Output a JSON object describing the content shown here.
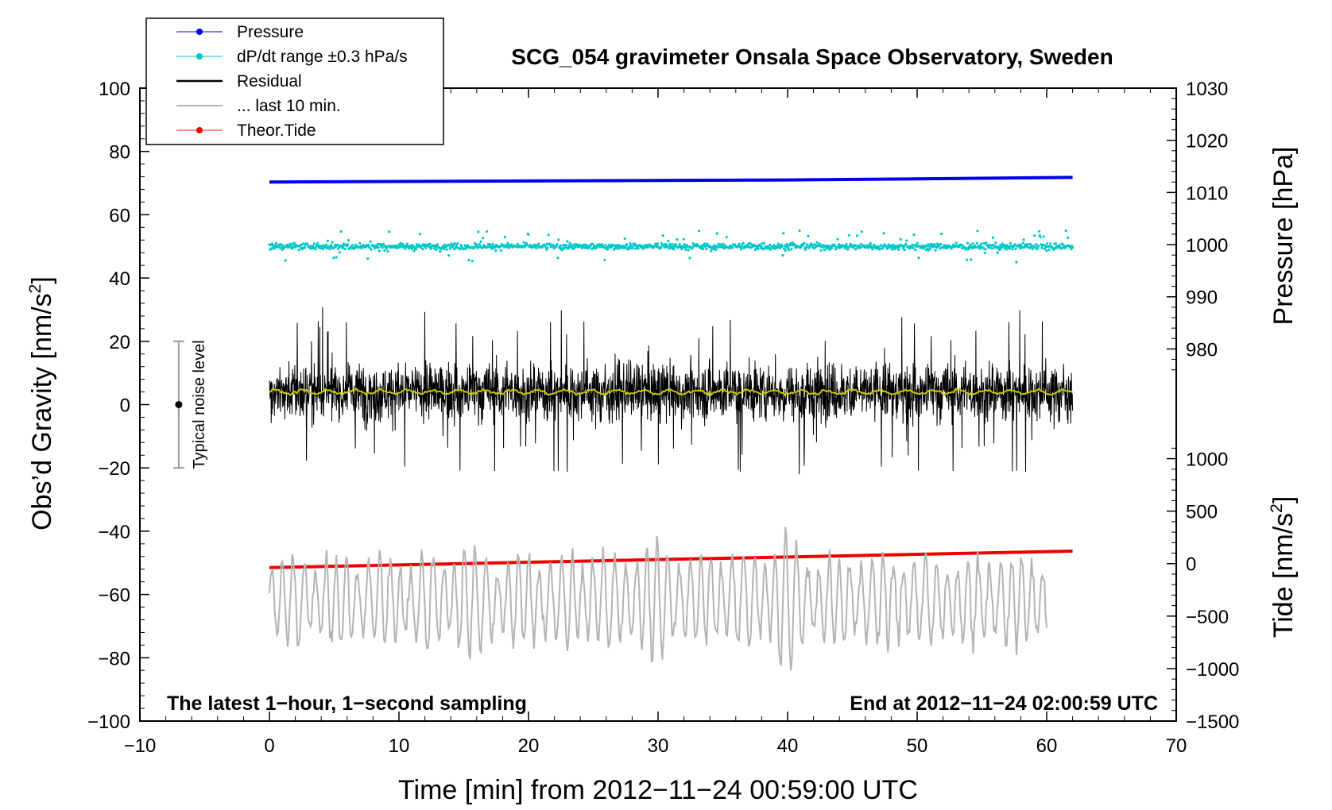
{
  "chart_data": {
    "type": "line",
    "title": "SCG_054 gravimeter Onsala Space Observatory, Sweden",
    "xlabel": "Time [min] from 2012−11−24 00:59:00 UTC",
    "ylabel_left_prefix": "Obs’d Gravity [nm/s",
    "ylabel_left_sup": "2",
    "ylabel_left_suffix": "]",
    "ylabel_right_top": "Pressure [hPa]",
    "ylabel_right_bottom_prefix": "Tide [nm/s",
    "ylabel_right_bottom_sup": "2",
    "ylabel_right_bottom_suffix": "]",
    "xlim": [
      -10,
      70
    ],
    "ylim_left": [
      -100,
      100
    ],
    "x_ticks": [
      -10,
      0,
      10,
      20,
      30,
      40,
      50,
      60,
      70
    ],
    "x_tick_labels": [
      "−10",
      "0",
      "10",
      "20",
      "30",
      "40",
      "50",
      "60",
      "70"
    ],
    "y_ticks_left": [
      -100,
      -80,
      -60,
      -40,
      -20,
      0,
      20,
      40,
      60,
      80,
      100
    ],
    "y_tick_labels_left": [
      "−100",
      "−80",
      "−60",
      "−40",
      "−20",
      "0",
      "20",
      "40",
      "60",
      "80",
      "100"
    ],
    "pressure_axis": {
      "ticks": [
        980,
        990,
        1000,
        1010,
        1020,
        1030
      ],
      "tick_labels": [
        "980",
        "990",
        "1000",
        "1010",
        "1020",
        "1030"
      ],
      "value_at_left_100": 1030,
      "hpa_per_left_unit": 0.6067
    },
    "tide_axis": {
      "ticks": [
        -1500,
        -1000,
        -500,
        0,
        500,
        1000
      ],
      "tick_labels": [
        "−1500",
        "−1000",
        "−500",
        "0",
        "500",
        "1000"
      ],
      "value_at_left_minus100": -1500,
      "nms2_per_left_unit": 30.15
    },
    "legend": [
      {
        "label": "Pressure",
        "color": "#0000ee",
        "marker": true,
        "line_color": "#7f7fff"
      },
      {
        "label": "dP/dt range ±0.3 hPa/s",
        "color": "#00c8c8",
        "marker": true,
        "line_color": "#7fe0e0"
      },
      {
        "label": "Residual",
        "color": "#000000",
        "marker": false,
        "line_color": "#000000"
      },
      {
        "label": "... last 10 min.",
        "color": "#b4b4b4",
        "marker": false,
        "line_color": "#b4b4b4"
      },
      {
        "label": "Theor.Tide",
        "color": "#ee0000",
        "marker": true,
        "line_color": "#ff8c8c"
      }
    ],
    "series": [
      {
        "name": "Pressure",
        "color": "#0000ee",
        "axis": "pressure",
        "x": [
          0,
          20,
          40,
          50,
          62
        ],
        "y": [
          1012.0,
          1012.2,
          1012.4,
          1012.6,
          1012.9
        ]
      },
      {
        "name": "dP/dt range ±0.3 hPa/s",
        "color": "#00c8c8",
        "axis": "left",
        "x_range": [
          0,
          62
        ],
        "center": 50,
        "spread": 2.5
      },
      {
        "name": "Residual",
        "color": "#000000",
        "axis": "left",
        "x_range": [
          0,
          62
        ],
        "center": 4,
        "max": 31,
        "min": -23
      },
      {
        "name": "Residual smoothed",
        "color": "#c8c800",
        "axis": "left",
        "x_range": [
          0,
          62
        ],
        "center": 4
      },
      {
        "name": "... last 10 min.",
        "color": "#b4b4b4",
        "axis": "left",
        "x_range": [
          0,
          60
        ],
        "center": -62,
        "max": -32,
        "min": -84
      },
      {
        "name": "Theor.Tide",
        "color": "#ee0000",
        "axis": "left",
        "x": [
          0,
          62
        ],
        "y": [
          -51.5,
          -46.3
        ]
      }
    ],
    "noise_level": {
      "label": "Typical noise level",
      "x": -7,
      "center": 0,
      "low": -20,
      "high": 20
    },
    "note_left": "The latest 1−hour, 1−second sampling",
    "note_right": "End at 2012−11−24 02:00:59 UTC"
  }
}
